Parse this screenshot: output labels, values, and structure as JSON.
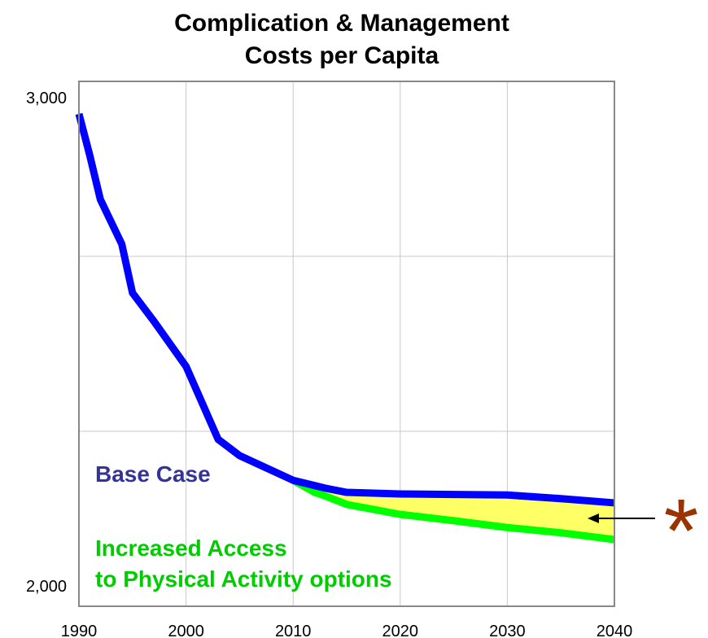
{
  "chart_data": {
    "type": "line",
    "title_lines": [
      "Complication & Management",
      "Costs per Capita"
    ],
    "x": [
      1990,
      1991,
      1992,
      1994,
      1995,
      1997,
      2000,
      2003,
      2005,
      2010,
      2012,
      2013,
      2015,
      2020,
      2025,
      2030,
      2035,
      2040
    ],
    "series": [
      {
        "name": "Base Case",
        "color": "#0000ff",
        "label_color": "#333399",
        "values": [
          2938,
          2860,
          2775,
          2690,
          2597,
          2543,
          2457,
          2318,
          2287,
          2240,
          2230,
          2225,
          2217,
          2214,
          2213,
          2212,
          2205,
          2197
        ]
      },
      {
        "name": "Increased Access|to Physical Activity options",
        "color": "#00ff00",
        "label_color": "#00cc00",
        "values": [
          null,
          null,
          null,
          null,
          null,
          null,
          null,
          null,
          null,
          2240,
          2217,
          2210,
          2194,
          2175,
          2163,
          2150,
          2140,
          2127
        ]
      }
    ],
    "fill_between": "#ffff66",
    "xlim": [
      1990,
      2040
    ],
    "xticks": [
      1990,
      2000,
      2010,
      2020,
      2030,
      2040
    ],
    "ylim": [
      2000,
      3000
    ],
    "yticks": [
      {
        "value": 2000,
        "label": "2,000"
      },
      {
        "value": 3000,
        "label": "3,000"
      }
    ],
    "ygrid": [
      2333.33,
      2666.67
    ],
    "grid": true,
    "annotation": {
      "text": "*",
      "color": "#993300"
    }
  }
}
